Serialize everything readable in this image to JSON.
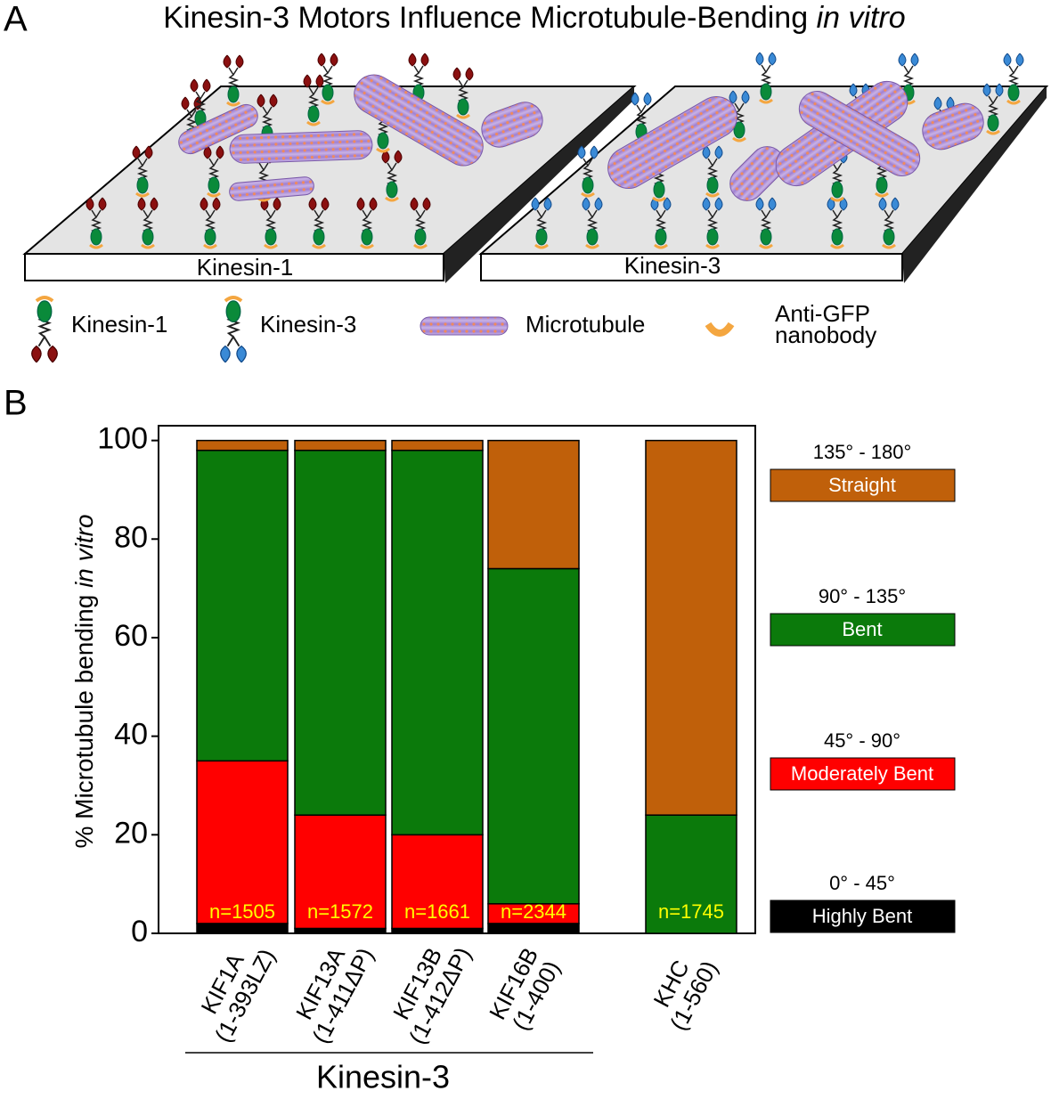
{
  "panel_a": {
    "label": "A",
    "title": "Kinesin-3 Motors Influence Microtubule-Bending",
    "title_italic": "in vitro",
    "surfaces": [
      "Kinesin-1",
      "Kinesin-3"
    ],
    "legend": [
      "Kinesin-1",
      "Kinesin-3",
      "Microtubule",
      [
        "Anti-GFP",
        "nanobody"
      ]
    ]
  },
  "chart_data": {
    "type": "bar",
    "stacked": true,
    "panel_label": "B",
    "categories": [
      "KIF1A\n(1-393LZ)",
      "KIF13A\n(1-411ΔP)",
      "KIF13B\n(1-412ΔP)",
      "KIF16B\n(1-400)",
      "KHC\n(1-560)"
    ],
    "group_label": "Kinesin-3",
    "ylabel": "% Microtubule bending",
    "ylabel_italic": "in vitro",
    "ylim": [
      0,
      103
    ],
    "yticks": [
      0,
      20,
      40,
      60,
      80,
      100
    ],
    "annotations": [
      "n=1505",
      "n=1572",
      "n=1661",
      "n=2344",
      "n=1745"
    ],
    "series": [
      {
        "name": "Highly Bent",
        "range": "0° - 45°",
        "color": "#000000",
        "values": [
          2,
          1,
          1,
          2,
          0
        ]
      },
      {
        "name": "Moderately Bent",
        "range": "45° - 90°",
        "color": "#ff0000",
        "values": [
          33,
          23,
          19,
          4,
          0
        ]
      },
      {
        "name": "Bent",
        "range": "90° - 135°",
        "color": "#0b7a0b",
        "values": [
          63,
          74,
          78,
          68,
          24
        ]
      },
      {
        "name": "Straight",
        "range": "135° - 180°",
        "color": "#c0600a",
        "values": [
          2,
          2,
          2,
          26,
          76
        ]
      }
    ]
  }
}
